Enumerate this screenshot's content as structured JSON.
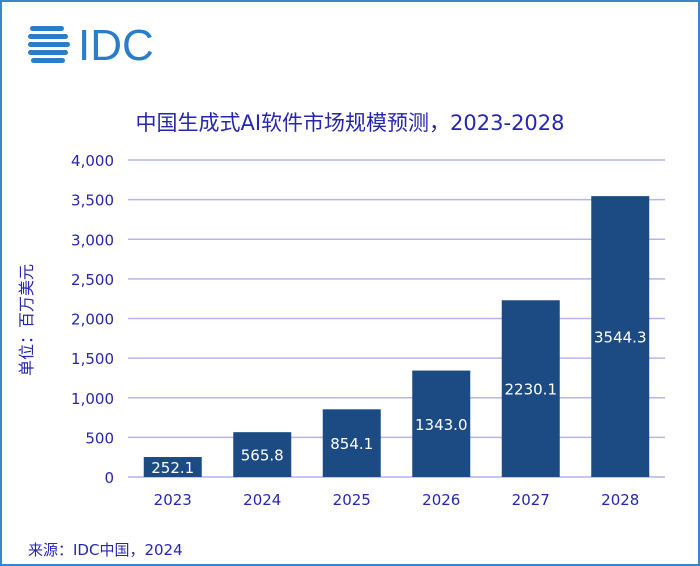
{
  "logo_text": "IDC",
  "chart_data": {
    "type": "bar",
    "title": "中国生成式AI软件市场规模预测，2023-2028",
    "ylabel": "单位：百万美元",
    "xlabel": "",
    "categories": [
      "2023",
      "2024",
      "2025",
      "2026",
      "2027",
      "2028"
    ],
    "values": [
      252.1,
      565.8,
      854.1,
      1343.0,
      2230.1,
      3544.3
    ],
    "data_labels": [
      "252.1",
      "565.8",
      "854.1",
      "1343.0",
      "2230.1",
      "3544.3"
    ],
    "ylim": [
      0,
      4000
    ],
    "yticks": [
      0,
      500,
      1000,
      1500,
      2000,
      2500,
      3000,
      3500,
      4000
    ],
    "ytick_labels": [
      "0",
      "500",
      "1,000",
      "1,500",
      "2,000",
      "2,500",
      "3,000",
      "3,500",
      "4,000"
    ],
    "grid": true,
    "legend": "none",
    "colors": {
      "bar": "#1b4b82",
      "grid": "#b4b4ee",
      "text": "#2626b0",
      "logo": "#2b7cc9"
    }
  },
  "source": "来源：IDC中国，2024"
}
